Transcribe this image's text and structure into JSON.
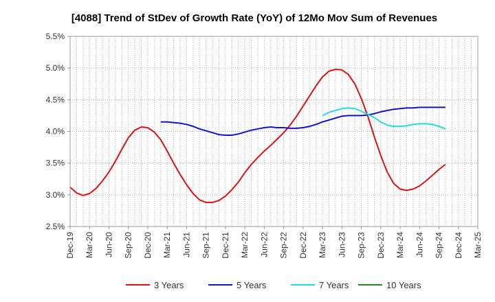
{
  "chart_data": {
    "type": "line",
    "title": "[4088]  Trend of StDev of Growth Rate (YoY) of 12Mo Mov Sum of Revenues",
    "xlabel": "",
    "ylabel": "",
    "ylim": [
      2.5,
      5.5
    ],
    "yticks": [
      "2.5%",
      "3.0%",
      "3.5%",
      "4.0%",
      "4.5%",
      "5.0%",
      "5.5%"
    ],
    "ytick_values": [
      2.5,
      3.0,
      3.5,
      4.0,
      4.5,
      5.0,
      5.5
    ],
    "xticks": [
      "Dec-19",
      "Mar-20",
      "Jun-20",
      "Sep-20",
      "Dec-20",
      "Mar-21",
      "Jun-21",
      "Sep-21",
      "Dec-21",
      "Mar-22",
      "Jun-22",
      "Sep-22",
      "Dec-22",
      "Mar-23",
      "Jun-23",
      "Sep-23",
      "Dec-23",
      "Mar-24",
      "Jun-24",
      "Sep-24",
      "Dec-24",
      "Mar-25"
    ],
    "x_months_range": [
      0,
      63
    ],
    "grid": true,
    "legend_position": "bottom",
    "series": [
      {
        "name": "3 Years",
        "color": "#dd1111",
        "start_month": 0,
        "values": [
          3.12,
          3.03,
          2.99,
          3.02,
          3.1,
          3.22,
          3.36,
          3.53,
          3.72,
          3.9,
          4.02,
          4.07,
          4.06,
          3.99,
          3.87,
          3.69,
          3.5,
          3.32,
          3.16,
          3.02,
          2.92,
          2.88,
          2.88,
          2.91,
          2.98,
          3.08,
          3.2,
          3.35,
          3.48,
          3.59,
          3.69,
          3.78,
          3.88,
          3.98,
          4.1,
          4.24,
          4.4,
          4.56,
          4.72,
          4.86,
          4.95,
          4.98,
          4.97,
          4.9,
          4.75,
          4.52,
          4.24,
          3.92,
          3.62,
          3.36,
          3.18,
          3.09,
          3.07,
          3.09,
          3.14,
          3.22,
          3.31,
          3.4,
          3.48
        ]
      },
      {
        "name": "5 Years",
        "color": "#1111cc",
        "start_month": 14,
        "values": [
          4.15,
          4.15,
          4.14,
          4.13,
          4.11,
          4.08,
          4.04,
          4.01,
          3.98,
          3.95,
          3.94,
          3.94,
          3.96,
          3.99,
          4.02,
          4.04,
          4.06,
          4.07,
          4.06,
          4.06,
          4.05,
          4.05,
          4.06,
          4.08,
          4.11,
          4.15,
          4.18,
          4.21,
          4.24,
          4.25,
          4.25,
          4.25,
          4.26,
          4.28,
          4.31,
          4.33,
          4.35,
          4.36,
          4.37,
          4.37,
          4.38,
          4.38,
          4.38,
          4.38,
          4.38
        ]
      },
      {
        "name": "7 Years",
        "color": "#22dddd",
        "start_month": 39,
        "values": [
          4.25,
          4.3,
          4.33,
          4.36,
          4.37,
          4.36,
          4.32,
          4.27,
          4.22,
          4.15,
          4.1,
          4.08,
          4.08,
          4.09,
          4.11,
          4.12,
          4.12,
          4.11,
          4.08,
          4.04
        ]
      },
      {
        "name": "10 Years",
        "color": "#228822",
        "start_month": 0,
        "values": []
      }
    ]
  }
}
